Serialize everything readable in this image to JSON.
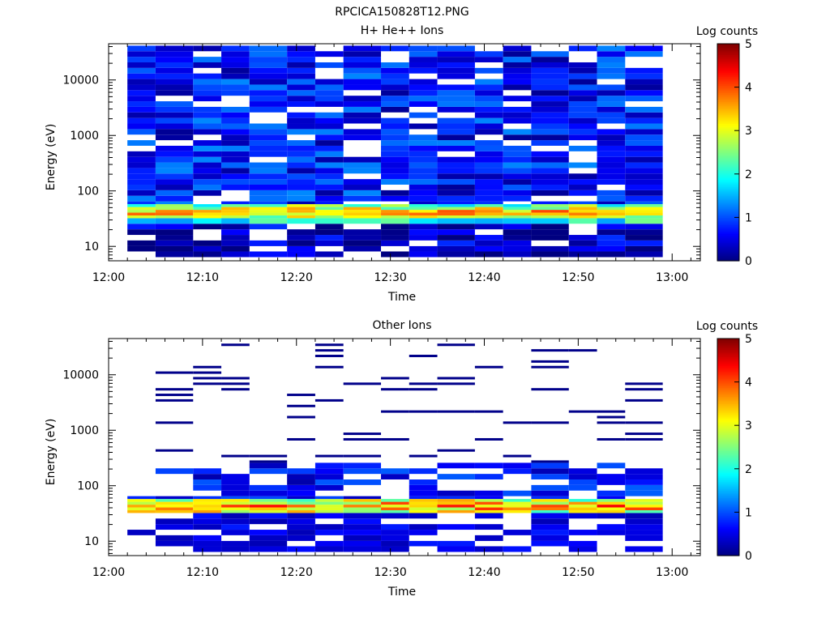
{
  "figure_title": "RPCICA150828T12.PNG",
  "colorbar": {
    "label": "Log counts",
    "ticks": [
      "0",
      "1",
      "2",
      "3",
      "4",
      "5"
    ],
    "range": [
      0,
      5
    ],
    "colormap": "jet"
  },
  "chart_data": [
    {
      "type": "heatmap",
      "title": "H+ He++ Ions",
      "xlabel": "Time",
      "ylabel": "Energy (eV)",
      "x_ticks": [
        "12:00",
        "12:10",
        "12:20",
        "12:30",
        "12:40",
        "12:50",
        "13:00"
      ],
      "xlim": [
        "12:00",
        "13:03"
      ],
      "y_ticks": [
        "10",
        "100",
        "1000",
        "10000"
      ],
      "yscale": "log",
      "ylim": [
        5.5,
        45000
      ],
      "time_bins": [
        "12:02",
        "12:05",
        "12:09",
        "12:12",
        "12:15",
        "12:19",
        "12:22",
        "12:25",
        "12:29",
        "12:32",
        "12:35",
        "12:39",
        "12:42",
        "12:45",
        "12:49",
        "12:52",
        "12:55",
        "12:59"
      ],
      "energy_bins_eV": [
        6.4,
        8.1,
        10.1,
        12.8,
        16.1,
        20.3,
        25.6,
        32.2,
        36.1,
        40.6,
        45.6,
        51.3,
        57.7,
        64.8,
        81.7,
        102.9,
        129.6,
        163.2,
        205.6,
        258.9,
        326.1,
        410.8,
        517.4,
        651.7,
        820.9,
        1034,
        1302,
        1640,
        2066,
        2603,
        3278,
        4129,
        5201,
        6551,
        8252,
        10395,
        13093,
        16493,
        20775,
        26169,
        32963,
        41522
      ],
      "peak_band_eV": [
        28,
        60
      ],
      "peak_log_counts": 4.3,
      "background_log_counts": 0.7
    },
    {
      "type": "heatmap",
      "title": "Other Ions",
      "xlabel": "Time",
      "ylabel": "Energy (eV)",
      "x_ticks": [
        "12:00",
        "12:10",
        "12:20",
        "12:30",
        "12:40",
        "12:50",
        "13:00"
      ],
      "xlim": [
        "12:00",
        "13:03"
      ],
      "y_ticks": [
        "10",
        "100",
        "1000",
        "10000"
      ],
      "yscale": "log",
      "ylim": [
        5.5,
        45000
      ],
      "time_bins": [
        "12:02",
        "12:05",
        "12:09",
        "12:12",
        "12:15",
        "12:19",
        "12:22",
        "12:25",
        "12:29",
        "12:32",
        "12:35",
        "12:39",
        "12:42",
        "12:45",
        "12:49",
        "12:52",
        "12:55",
        "12:59"
      ],
      "energy_bins_eV": [
        6.4,
        8.1,
        10.1,
        12.8,
        16.1,
        20.3,
        25.6,
        32.2,
        36.1,
        40.6,
        45.6,
        51.3,
        57.7,
        64.8,
        81.7,
        102.9,
        129.6,
        163.2,
        205.6,
        258.9,
        326.1,
        410.8,
        517.4,
        651.7,
        820.9,
        1034,
        1302,
        1640,
        2066,
        2603,
        3278,
        4129,
        5201,
        6551,
        8252,
        10395,
        13093,
        16493,
        20775,
        26169,
        32963,
        41522
      ],
      "peak_band_eV": [
        30,
        60
      ],
      "peak_log_counts": 4.5,
      "background_log_counts": 0.2
    }
  ]
}
